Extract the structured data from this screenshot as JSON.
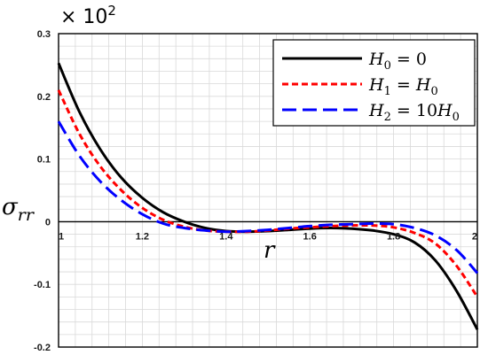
{
  "chart_data": {
    "type": "line",
    "scale_note": "× 10",
    "scale_exp": "2",
    "xlabel": "r",
    "ylabel": "σ",
    "ylabel_sub": "rr",
    "xlim": [
      1,
      2
    ],
    "ylim": [
      -0.2,
      0.3
    ],
    "xticks": [
      1,
      1.2,
      1.4,
      1.6,
      1.8,
      2
    ],
    "xtick_labels": [
      "1",
      "1.2",
      "1.4",
      "1.6",
      "1.8",
      "2"
    ],
    "yticks": [
      -0.2,
      -0.1,
      0,
      0.1,
      0.2,
      0.3
    ],
    "ytick_labels": [
      "-0.2",
      "-0.1",
      "0",
      "0.1",
      "0.2",
      "0.3"
    ],
    "grid": true,
    "legend_position": "top-right",
    "series": [
      {
        "legend": {
          "main": "H",
          "sub": "0",
          "eq": " = 0"
        },
        "color": "#000000",
        "dash": "solid",
        "x": [
          1.0,
          1.05,
          1.1,
          1.15,
          1.2,
          1.25,
          1.3,
          1.35,
          1.4,
          1.45,
          1.5,
          1.55,
          1.6,
          1.65,
          1.7,
          1.75,
          1.8,
          1.85,
          1.9,
          1.95,
          2.0
        ],
        "y": [
          0.253,
          0.175,
          0.115,
          0.07,
          0.038,
          0.015,
          0.0,
          -0.01,
          -0.015,
          -0.016,
          -0.015,
          -0.013,
          -0.011,
          -0.01,
          -0.011,
          -0.014,
          -0.02,
          -0.033,
          -0.062,
          -0.11,
          -0.172
        ]
      },
      {
        "legend": {
          "main": "H",
          "sub": "1",
          "eq": " = ",
          "rhs_main": "H",
          "rhs_sub": "0"
        },
        "color": "#ff0000",
        "dash": "short",
        "x": [
          1.0,
          1.05,
          1.1,
          1.15,
          1.2,
          1.25,
          1.3,
          1.35,
          1.4,
          1.45,
          1.5,
          1.55,
          1.6,
          1.65,
          1.7,
          1.75,
          1.8,
          1.85,
          1.9,
          1.95,
          2.0
        ],
        "y": [
          0.21,
          0.14,
          0.088,
          0.05,
          0.022,
          0.003,
          -0.008,
          -0.014,
          -0.016,
          -0.016,
          -0.014,
          -0.011,
          -0.009,
          -0.007,
          -0.006,
          -0.006,
          -0.009,
          -0.018,
          -0.035,
          -0.07,
          -0.12
        ]
      },
      {
        "legend": {
          "main": "H",
          "sub": "2",
          "eq": " = 10",
          "rhs_main": "H",
          "rhs_sub": "0"
        },
        "color": "#0000ff",
        "dash": "long",
        "x": [
          1.0,
          1.05,
          1.1,
          1.15,
          1.2,
          1.25,
          1.3,
          1.35,
          1.4,
          1.45,
          1.5,
          1.55,
          1.6,
          1.65,
          1.7,
          1.75,
          1.8,
          1.85,
          1.9,
          1.95,
          2.0
        ],
        "y": [
          0.16,
          0.105,
          0.064,
          0.034,
          0.012,
          -0.003,
          -0.01,
          -0.014,
          -0.016,
          -0.015,
          -0.013,
          -0.01,
          -0.007,
          -0.005,
          -0.004,
          -0.003,
          -0.004,
          -0.01,
          -0.022,
          -0.045,
          -0.082
        ]
      }
    ]
  }
}
